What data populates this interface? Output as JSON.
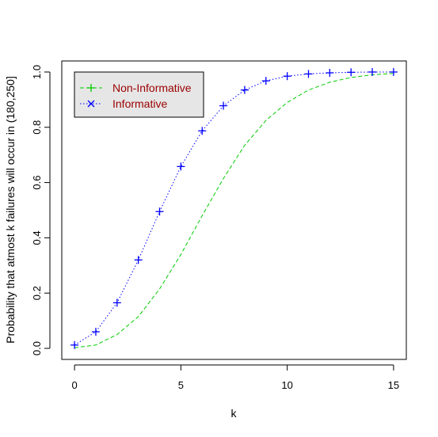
{
  "chart_data": {
    "type": "line",
    "title": "",
    "xlabel": "k",
    "ylabel": "Probability that atmost k failures will occur in (180,250]",
    "xlim": [
      -0.6,
      15.6
    ],
    "ylim": [
      -0.04,
      1.04
    ],
    "x_ticks": [
      0,
      5,
      10,
      15
    ],
    "y_ticks": [
      0.0,
      0.2,
      0.4,
      0.6,
      0.8,
      1.0
    ],
    "x_tick_labels": [
      "0",
      "5",
      "10",
      "15"
    ],
    "y_tick_labels": [
      "0.0",
      "0.2",
      "0.4",
      "0.6",
      "0.8",
      "1.0"
    ],
    "grid": false,
    "legend_position": "top-left",
    "legend_bg": "#e6e6e6",
    "x": [
      0,
      1,
      2,
      3,
      4,
      5,
      6,
      7,
      8,
      9,
      10,
      11,
      12,
      13,
      14,
      15
    ],
    "series": [
      {
        "name": "Non-Informative",
        "color": "#00cd00",
        "line_style": "dashed",
        "marker": "plus",
        "markers_on_plot": false,
        "values": [
          0.002,
          0.012,
          0.05,
          0.115,
          0.215,
          0.34,
          0.48,
          0.615,
          0.735,
          0.825,
          0.89,
          0.935,
          0.963,
          0.98,
          0.99,
          0.995
        ]
      },
      {
        "name": "Informative",
        "color": "#0000ff",
        "line_style": "dotted",
        "marker": "cross",
        "plot_marker": "plus",
        "markers_on_plot": true,
        "values": [
          0.012,
          0.06,
          0.165,
          0.32,
          0.495,
          0.658,
          0.787,
          0.878,
          0.935,
          0.968,
          0.985,
          0.993,
          0.997,
          0.999,
          1.0,
          1.0
        ]
      }
    ],
    "legend_text_color": "#9b0000"
  }
}
